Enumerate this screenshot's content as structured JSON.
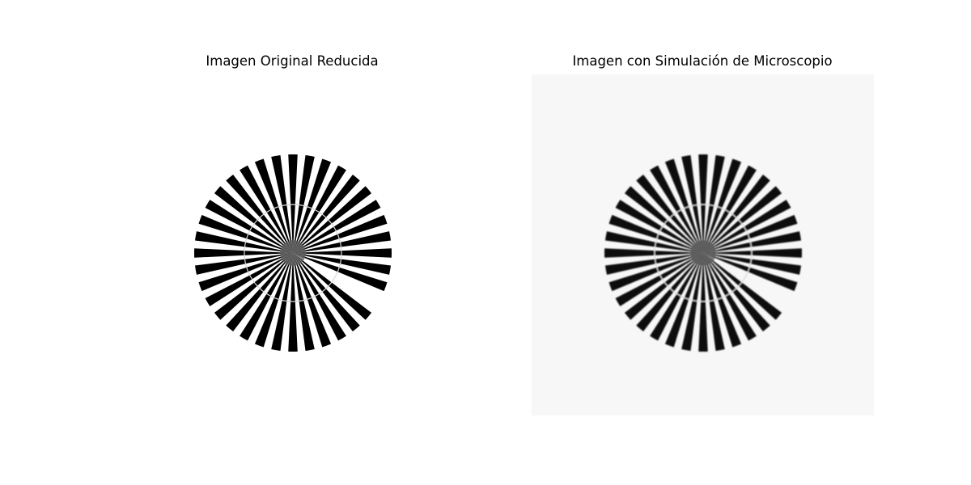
{
  "figure": {
    "background": "#ffffff",
    "panels": [
      {
        "title": "Imagen Original Reducida",
        "image_background": "#ffffff",
        "spoke_color": "#000000",
        "blurred": false
      },
      {
        "title": "Imagen con Simulación de Microscopio",
        "image_background": "#f7f7f7",
        "spoke_color": "#0a0a0a",
        "blurred": true
      }
    ],
    "siemens_star": {
      "spoke_count": 36,
      "missing_wedge": "lower-right",
      "inner_ring": true
    }
  }
}
